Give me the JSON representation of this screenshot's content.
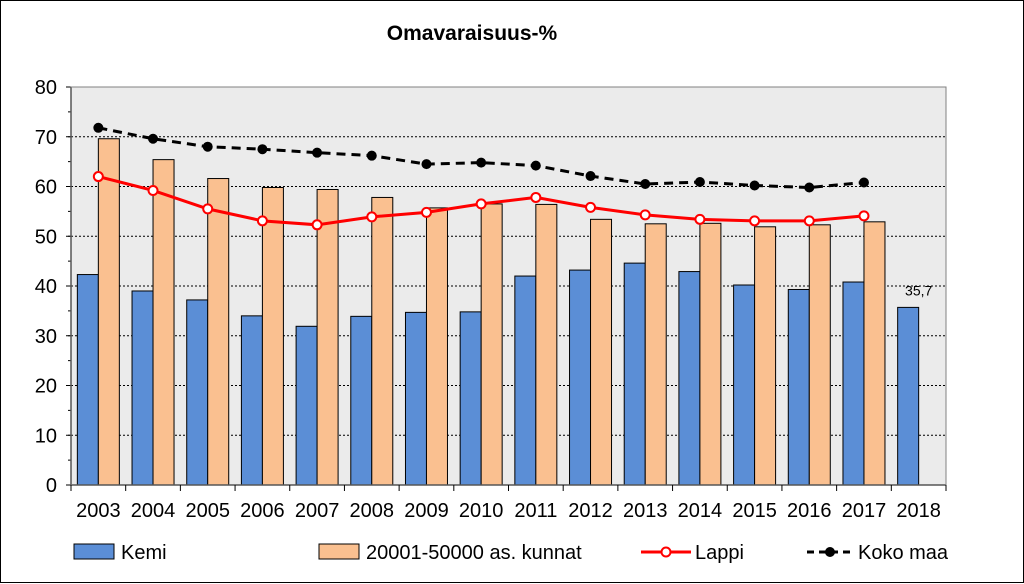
{
  "chart_data": {
    "type": "bar",
    "title": "Omavaraisuus-%",
    "xlabel": "",
    "ylabel": "",
    "ylim": [
      0,
      80
    ],
    "ytick_step": 10,
    "grid": true,
    "legend_position": "bottom",
    "categories": [
      "2003",
      "2004",
      "2005",
      "2006",
      "2007",
      "2008",
      "2009",
      "2010",
      "2011",
      "2012",
      "2013",
      "2014",
      "2015",
      "2016",
      "2017",
      "2018"
    ],
    "bar_series": [
      {
        "name": "Kemi",
        "color": "#5B8ED6",
        "values": [
          42.3,
          39.0,
          37.2,
          34.0,
          31.9,
          33.9,
          34.7,
          34.8,
          42.0,
          43.2,
          44.6,
          42.9,
          40.2,
          39.3,
          40.8,
          35.7
        ]
      },
      {
        "name": "20001-50000 as. kunnat",
        "color": "#FAC090",
        "values": [
          69.6,
          65.4,
          61.6,
          59.8,
          59.4,
          57.8,
          55.7,
          56.5,
          56.4,
          53.4,
          52.5,
          52.6,
          51.9,
          52.3,
          52.9,
          null
        ]
      }
    ],
    "line_series": [
      {
        "name": "Lappi",
        "color": "#FF0000",
        "values": [
          62.0,
          59.2,
          55.5,
          53.1,
          52.3,
          53.9,
          54.8,
          56.5,
          57.8,
          55.8,
          54.3,
          53.4,
          53.1,
          53.1,
          54.1,
          null
        ]
      },
      {
        "name": "Koko maa",
        "color": "#000000",
        "values": [
          71.8,
          69.6,
          68.0,
          67.5,
          66.8,
          66.2,
          64.5,
          64.8,
          64.2,
          62.1,
          60.5,
          60.9,
          60.2,
          59.8,
          60.8,
          null
        ]
      }
    ],
    "annotations": [
      {
        "category": "2018",
        "text": "35,7"
      }
    ]
  }
}
